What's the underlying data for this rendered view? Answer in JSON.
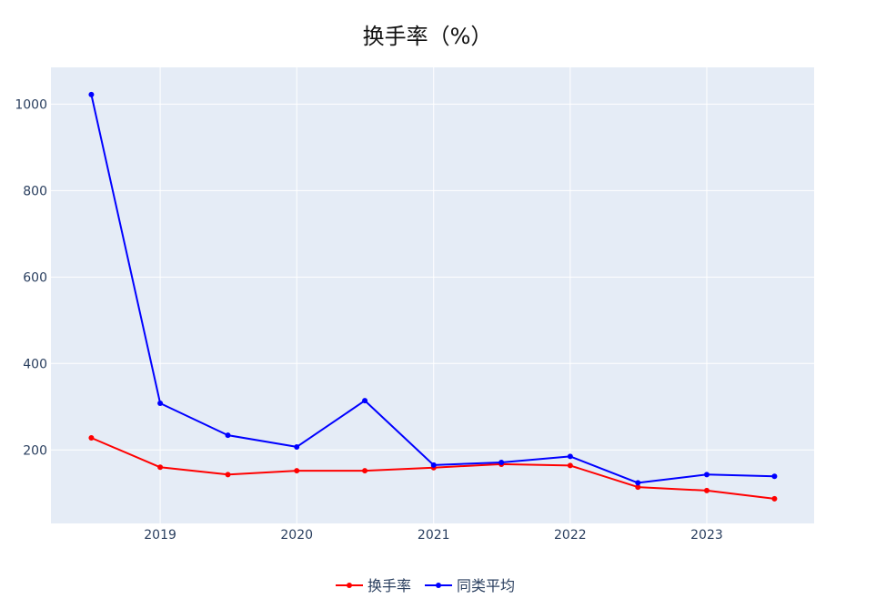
{
  "chart_data": {
    "type": "line",
    "title": "换手率（%）",
    "xlabel": "",
    "ylabel": "",
    "x": [
      "2018-07-01",
      "2019-01-01",
      "2019-07-01",
      "2020-01-01",
      "2020-07-01",
      "2021-01-01",
      "2021-07-01",
      "2022-01-01",
      "2022-07-01",
      "2023-01-01",
      "2023-07-01"
    ],
    "x_ticks": [
      {
        "date": "2019-01-01",
        "label": "2019"
      },
      {
        "date": "2020-01-01",
        "label": "2020"
      },
      {
        "date": "2021-01-01",
        "label": "2021"
      },
      {
        "date": "2022-01-01",
        "label": "2022"
      },
      {
        "date": "2023-01-01",
        "label": "2023"
      }
    ],
    "xlim": [
      "2018-03-15",
      "2023-10-15"
    ],
    "y_ticks": [
      200,
      400,
      600,
      800,
      1000
    ],
    "ylim": [
      30,
      1085
    ],
    "grid": true,
    "legend_position": "bottom-center",
    "series": [
      {
        "name": "换手率",
        "color": "#ff0000",
        "values": [
          228,
          160,
          143,
          152,
          152,
          159,
          167,
          164,
          114,
          106,
          87
        ]
      },
      {
        "name": "同类平均",
        "color": "#0000ff",
        "values": [
          1022,
          308,
          234,
          207,
          314,
          165,
          171,
          185,
          124,
          143,
          139
        ]
      }
    ]
  },
  "colors": {
    "plot_background": "#e5ecf6",
    "grid": "#ffffff",
    "tick_text": "#2a3f5f"
  }
}
